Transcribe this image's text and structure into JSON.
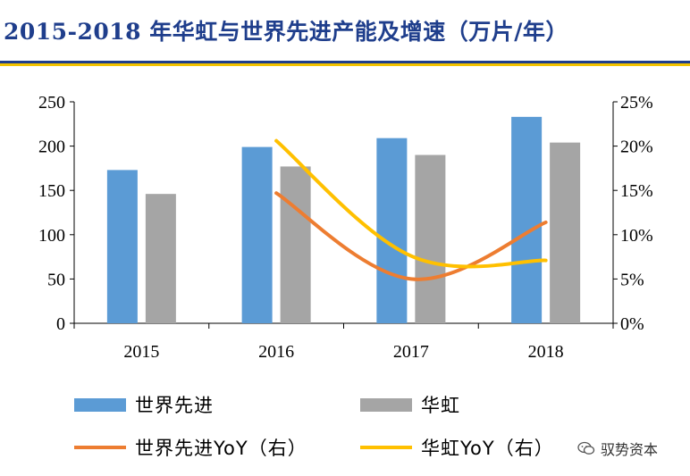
{
  "header": {
    "title": "2015-2018 年华虹与世界先进产能及增速（万片/年）"
  },
  "watermark": {
    "text": "驭势资本",
    "icon": "wechat-icon"
  },
  "colors": {
    "title": "#1f3e8c",
    "rule_top": "#1f3e8c",
    "rule_bottom": "#f2c200",
    "series_1_bar": "#5b9bd5",
    "series_2_bar": "#a5a5a5",
    "series_1_line": "#ed7d31",
    "series_2_line": "#ffc000"
  },
  "chart_data": {
    "type": "bar",
    "categories": [
      "2015",
      "2016",
      "2017",
      "2018"
    ],
    "series": [
      {
        "name": "世界先进",
        "kind": "bar",
        "axis": "left",
        "values": [
          173,
          199,
          209,
          233
        ]
      },
      {
        "name": "华虹",
        "kind": "bar",
        "axis": "left",
        "values": [
          146,
          177,
          190,
          204
        ]
      },
      {
        "name": "世界先进YoY（右）",
        "kind": "line",
        "axis": "right",
        "values": [
          null,
          0.147,
          0.05,
          0.114
        ]
      },
      {
        "name": "华虹YoY（右）",
        "kind": "line",
        "axis": "right",
        "values": [
          null,
          0.206,
          0.076,
          0.071
        ]
      }
    ],
    "y_left": {
      "min": 0,
      "max": 250,
      "ticks": [
        "0",
        "50",
        "100",
        "150",
        "200",
        "250"
      ]
    },
    "y_right": {
      "min": 0,
      "max": 0.25,
      "ticks": [
        "0%",
        "5%",
        "10%",
        "15%",
        "20%",
        "25%"
      ]
    },
    "title": "",
    "xlabel": "",
    "ylabel": "",
    "grid": false,
    "legend_position": "bottom"
  }
}
